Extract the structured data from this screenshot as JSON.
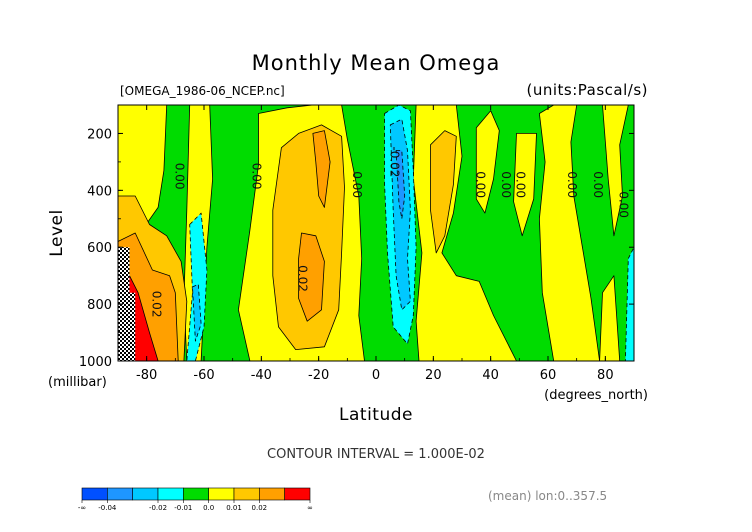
{
  "figure": {
    "title": "Monthly Mean Omega",
    "file_label": "[OMEGA_1986-06_NCEP.nc]",
    "units_label": "(units:Pascal/s)",
    "contour_interval": "CONTOUR INTERVAL = 1.000E-02",
    "mean_note": "(mean) lon:0..357.5"
  },
  "chart_data": {
    "type": "heatmap",
    "title": "Monthly Mean Omega",
    "xlabel": "Latitude",
    "x_units": "(degrees_north)",
    "ylabel": "Level",
    "y_units": "(millibar)",
    "xlim": [
      -90,
      90
    ],
    "ylim": [
      1000,
      100
    ],
    "x_ticks": [
      {
        "value": -80,
        "label": "-80"
      },
      {
        "value": -60,
        "label": "-60"
      },
      {
        "value": -40,
        "label": "-40"
      },
      {
        "value": -20,
        "label": "-20"
      },
      {
        "value": 0,
        "label": "0"
      },
      {
        "value": 20,
        "label": "20"
      },
      {
        "value": 40,
        "label": "40"
      },
      {
        "value": 60,
        "label": "60"
      },
      {
        "value": 80,
        "label": "80"
      }
    ],
    "y_ticks": [
      {
        "value": 200,
        "label": "200"
      },
      {
        "value": 400,
        "label": "400"
      },
      {
        "value": 600,
        "label": "600"
      },
      {
        "value": 800,
        "label": "800"
      },
      {
        "value": 1000,
        "label": "1000"
      }
    ],
    "colorbar": {
      "levels": [
        "-∞",
        "-0.04",
        "-0.03",
        "-0.02",
        "-0.01",
        "0.0",
        "0.01",
        "0.02",
        "0.03",
        "∞"
      ],
      "tick_labels": [
        "-∞",
        "-0.04",
        "-0.02",
        "-0.01",
        "0.0",
        "0.01",
        "0.02",
        "∞"
      ],
      "colors": [
        "#0050ff",
        "#1e96ff",
        "#00c8ff",
        "#00ffff",
        "#00dc00",
        "#ffff00",
        "#ffc800",
        "#ffa000",
        "#ff0000"
      ]
    },
    "contour_labels": [
      {
        "lat": -70,
        "lev": 350,
        "text": "0.00"
      },
      {
        "lat": -43,
        "lev": 350,
        "text": "0.00"
      },
      {
        "lat": -8,
        "lev": 380,
        "text": "0.00"
      },
      {
        "lat": 5,
        "lev": 300,
        "text": "-0.02"
      },
      {
        "lat": 35,
        "lev": 380,
        "text": "0.00"
      },
      {
        "lat": 44,
        "lev": 380,
        "text": "0.00"
      },
      {
        "lat": 49,
        "lev": 380,
        "text": "0.00"
      },
      {
        "lat": 67,
        "lev": 380,
        "text": "0.00"
      },
      {
        "lat": 76,
        "lev": 380,
        "text": "0.00"
      },
      {
        "lat": 85,
        "lev": 450,
        "text": "0.00"
      },
      {
        "lat": -27,
        "lev": 710,
        "text": "0.02"
      },
      {
        "lat": -78,
        "lev": 800,
        "text": "0.02"
      }
    ],
    "regions": [
      {
        "value": 0.01,
        "points": [
          [
            -90,
            100
          ],
          [
            -73,
            100
          ],
          [
            -74,
            330
          ],
          [
            -76,
            460
          ],
          [
            -83,
            560
          ],
          [
            -90,
            560
          ]
        ]
      },
      {
        "value": 0.01,
        "points": [
          [
            -65,
            100
          ],
          [
            -58,
            100
          ],
          [
            -57,
            360
          ],
          [
            -59,
            600
          ],
          [
            -61,
            1000
          ],
          [
            -66,
            1000
          ],
          [
            -67,
            780
          ],
          [
            -66,
            470
          ]
        ]
      },
      {
        "value": 0.01,
        "points": [
          [
            -41,
            130
          ],
          [
            -31,
            110
          ],
          [
            -22,
            100
          ],
          [
            -12,
            100
          ],
          [
            -10,
            220
          ],
          [
            -6,
            420
          ],
          [
            -5,
            640
          ],
          [
            -6,
            840
          ],
          [
            -4,
            1000
          ],
          [
            -44,
            1000
          ],
          [
            -48,
            820
          ],
          [
            -44,
            540
          ],
          [
            -41,
            310
          ]
        ]
      },
      {
        "value": 0.01,
        "points": [
          [
            14,
            100
          ],
          [
            28,
            100
          ],
          [
            30,
            280
          ],
          [
            27,
            480
          ],
          [
            23,
            620
          ],
          [
            28,
            700
          ],
          [
            36,
            720
          ],
          [
            41,
            840
          ],
          [
            49,
            1000
          ],
          [
            15,
            1000
          ],
          [
            14,
            860
          ],
          [
            16,
            620
          ],
          [
            13,
            360
          ]
        ]
      },
      {
        "value": 0.01,
        "points": [
          [
            35,
            180
          ],
          [
            40,
            120
          ],
          [
            43,
            190
          ],
          [
            41,
            360
          ],
          [
            38,
            480
          ],
          [
            35,
            430
          ]
        ]
      },
      {
        "value": 0.01,
        "points": [
          [
            49,
            200
          ],
          [
            56,
            200
          ],
          [
            55,
            430
          ],
          [
            51,
            560
          ],
          [
            48,
            440
          ]
        ]
      },
      {
        "value": 0.01,
        "points": [
          [
            57,
            130
          ],
          [
            62,
            100
          ],
          [
            70,
            100
          ],
          [
            68,
            230
          ],
          [
            69,
            420
          ],
          [
            72,
            600
          ],
          [
            75,
            780
          ],
          [
            78,
            1000
          ],
          [
            62,
            1000
          ],
          [
            58,
            760
          ],
          [
            57,
            500
          ],
          [
            59,
            300
          ]
        ]
      },
      {
        "value": 0.01,
        "points": [
          [
            79,
            100
          ],
          [
            88,
            100
          ],
          [
            85,
            240
          ],
          [
            86,
            420
          ],
          [
            83,
            560
          ],
          [
            81,
            360
          ]
        ]
      },
      {
        "value": 0.01,
        "points": [
          [
            79,
            760
          ],
          [
            83,
            700
          ],
          [
            85,
            1000
          ],
          [
            78,
            1000
          ]
        ]
      },
      {
        "value": 0.02,
        "points": [
          [
            -90,
            420
          ],
          [
            -84,
            420
          ],
          [
            -79,
            520
          ],
          [
            -73,
            560
          ],
          [
            -68,
            650
          ],
          [
            -66,
            790
          ],
          [
            -67,
            1000
          ],
          [
            -90,
            1000
          ]
        ]
      },
      {
        "value": 0.02,
        "points": [
          [
            -33,
            250
          ],
          [
            -27,
            200
          ],
          [
            -19,
            170
          ],
          [
            -12,
            210
          ],
          [
            -11,
            390
          ],
          [
            -12,
            620
          ],
          [
            -13,
            820
          ],
          [
            -18,
            950
          ],
          [
            -28,
            960
          ],
          [
            -34,
            880
          ],
          [
            -36,
            700
          ],
          [
            -36,
            470
          ]
        ]
      },
      {
        "value": 0.02,
        "points": [
          [
            19,
            240
          ],
          [
            24,
            190
          ],
          [
            28,
            210
          ],
          [
            27,
            380
          ],
          [
            24,
            560
          ],
          [
            21,
            620
          ],
          [
            19,
            470
          ]
        ]
      },
      {
        "value": 0.03,
        "points": [
          [
            -90,
            580
          ],
          [
            -84,
            550
          ],
          [
            -78,
            680
          ],
          [
            -72,
            700
          ],
          [
            -70,
            760
          ],
          [
            -69,
            1000
          ],
          [
            -90,
            1000
          ]
        ]
      },
      {
        "value": 0.03,
        "points": [
          [
            -22,
            200
          ],
          [
            -18,
            190
          ],
          [
            -16,
            300
          ],
          [
            -18,
            460
          ],
          [
            -20,
            420
          ],
          [
            -21,
            300
          ]
        ]
      },
      {
        "value": 0.03,
        "points": [
          [
            -26,
            550
          ],
          [
            -21,
            560
          ],
          [
            -18,
            650
          ],
          [
            -19,
            820
          ],
          [
            -24,
            860
          ],
          [
            -27,
            780
          ],
          [
            -27,
            640
          ]
        ]
      },
      {
        "value": 0.04,
        "points": [
          [
            -90,
            720
          ],
          [
            -86,
            700
          ],
          [
            -83,
            760
          ],
          [
            -79,
            900
          ],
          [
            -76,
            1000
          ],
          [
            -90,
            1000
          ]
        ]
      },
      {
        "value": -0.01,
        "points": [
          [
            -65,
            520
          ],
          [
            -61,
            480
          ],
          [
            -59,
            680
          ],
          [
            -60,
            880
          ],
          [
            -63,
            1000
          ],
          [
            -66,
            1000
          ],
          [
            -64,
            760
          ]
        ]
      },
      {
        "value": -0.01,
        "points": [
          [
            3,
            130
          ],
          [
            8,
            100
          ],
          [
            12,
            120
          ],
          [
            13,
            330
          ],
          [
            14,
            600
          ],
          [
            13,
            840
          ],
          [
            11,
            940
          ],
          [
            6,
            880
          ],
          [
            4,
            620
          ],
          [
            3,
            380
          ]
        ]
      },
      {
        "value": -0.01,
        "points": [
          [
            88,
            640
          ],
          [
            90,
            600
          ],
          [
            90,
            1000
          ],
          [
            87,
            1000
          ]
        ]
      },
      {
        "value": -0.02,
        "points": [
          [
            -64,
            740
          ],
          [
            -62,
            730
          ],
          [
            -61,
            870
          ],
          [
            -63,
            930
          ]
        ]
      },
      {
        "value": -0.02,
        "points": [
          [
            5,
            170
          ],
          [
            9,
            150
          ],
          [
            11,
            260
          ],
          [
            12,
            470
          ],
          [
            11,
            640
          ],
          [
            12,
            790
          ],
          [
            9,
            820
          ],
          [
            7,
            700
          ],
          [
            6,
            470
          ]
        ]
      },
      {
        "value": -0.03,
        "points": [
          [
            7,
            260
          ],
          [
            9,
            260
          ],
          [
            10,
            420
          ],
          [
            9,
            500
          ],
          [
            8,
            440
          ]
        ]
      }
    ],
    "hatch": {
      "points": [
        [
          -90,
          600
        ],
        [
          -86,
          600
        ],
        [
          -86,
          760
        ],
        [
          -84,
          760
        ],
        [
          -84,
          1000
        ],
        [
          -90,
          1000
        ]
      ]
    }
  }
}
